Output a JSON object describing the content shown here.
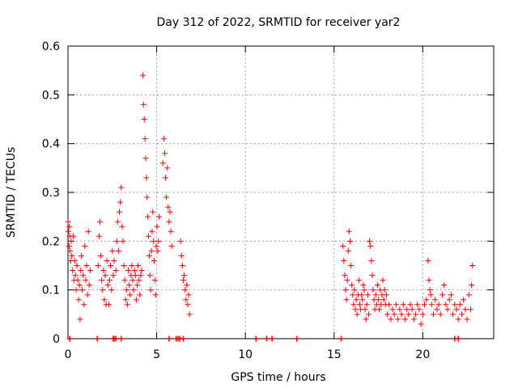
{
  "chart_data": {
    "type": "scatter",
    "title": "Day 312 of 2022, SRMTID for receiver yar2",
    "xlabel": "GPS time / hours",
    "ylabel": "SRMTID / TECUs",
    "xlim": [
      0,
      24
    ],
    "ylim": [
      0,
      0.6
    ],
    "x_ticks": [
      0,
      5,
      10,
      15,
      20
    ],
    "x_tick_labels": [
      "0",
      "5",
      "10",
      "15",
      "20"
    ],
    "y_ticks": [
      0,
      0.1,
      0.2,
      0.3,
      0.4,
      0.5,
      0.6
    ],
    "y_tick_labels": [
      "0",
      "0.1",
      "0.2",
      "0.3",
      "0.4",
      "0.5",
      "0.6"
    ],
    "grid": true,
    "marker": "plus",
    "color": "#ff0000",
    "series": [
      {
        "name": "SRMTID",
        "points": [
          [
            0.0,
            0.24
          ],
          [
            0.03,
            0.22
          ],
          [
            0.06,
            0.19
          ],
          [
            0.08,
            0.23
          ],
          [
            0.1,
            0.21
          ],
          [
            0.12,
            0.18
          ],
          [
            0.15,
            0.16
          ],
          [
            0.18,
            0.2
          ],
          [
            0.22,
            0.17
          ],
          [
            0.26,
            0.14
          ],
          [
            0.3,
            0.21
          ],
          [
            0.34,
            0.12
          ],
          [
            0.38,
            0.16
          ],
          [
            0.42,
            0.13
          ],
          [
            0.46,
            0.1
          ],
          [
            0.5,
            0.15
          ],
          [
            0.55,
            0.12
          ],
          [
            0.6,
            0.08
          ],
          [
            0.64,
            0.11
          ],
          [
            0.68,
            0.04
          ],
          [
            0.72,
            0.14
          ],
          [
            0.76,
            0.17
          ],
          [
            0.8,
            0.1
          ],
          [
            0.85,
            0.13
          ],
          [
            0.9,
            0.07
          ],
          [
            0.95,
            0.19
          ],
          [
            1.0,
            0.12
          ],
          [
            1.05,
            0.15
          ],
          [
            1.1,
            0.09
          ],
          [
            1.15,
            0.22
          ],
          [
            1.2,
            0.11
          ],
          [
            1.25,
            0.14
          ],
          [
            1.7,
            0.15
          ],
          [
            1.75,
            0.21
          ],
          [
            1.8,
            0.24
          ],
          [
            1.85,
            0.17
          ],
          [
            1.9,
            0.12
          ],
          [
            1.95,
            0.1
          ],
          [
            2.0,
            0.14
          ],
          [
            2.05,
            0.08
          ],
          [
            2.1,
            0.13
          ],
          [
            2.15,
            0.07
          ],
          [
            2.2,
            0.16
          ],
          [
            2.25,
            0.11
          ],
          [
            2.3,
            0.07
          ],
          [
            2.35,
            0.12
          ],
          [
            2.4,
            0.15
          ],
          [
            2.45,
            0.1
          ],
          [
            2.5,
            0.18
          ],
          [
            2.55,
            0.13
          ],
          [
            2.6,
            0.16
          ],
          [
            2.7,
            0.14
          ],
          [
            2.75,
            0.2
          ],
          [
            2.8,
            0.24
          ],
          [
            2.85,
            0.18
          ],
          [
            2.9,
            0.26
          ],
          [
            2.95,
            0.28
          ],
          [
            3.0,
            0.31
          ],
          [
            3.05,
            0.23
          ],
          [
            3.1,
            0.2
          ],
          [
            3.15,
            0.15
          ],
          [
            3.2,
            0.12
          ],
          [
            3.25,
            0.08
          ],
          [
            3.3,
            0.1
          ],
          [
            3.35,
            0.07
          ],
          [
            3.4,
            0.14
          ],
          [
            3.45,
            0.11
          ],
          [
            3.5,
            0.09
          ],
          [
            3.55,
            0.13
          ],
          [
            3.6,
            0.15
          ],
          [
            3.65,
            0.12
          ],
          [
            3.7,
            0.1
          ],
          [
            3.75,
            0.14
          ],
          [
            3.8,
            0.13
          ],
          [
            3.85,
            0.08
          ],
          [
            3.9,
            0.11
          ],
          [
            3.95,
            0.15
          ],
          [
            4.0,
            0.12
          ],
          [
            4.05,
            0.09
          ],
          [
            4.1,
            0.13
          ],
          [
            4.15,
            0.14
          ],
          [
            4.22,
            0.54
          ],
          [
            4.26,
            0.48
          ],
          [
            4.3,
            0.45
          ],
          [
            4.34,
            0.41
          ],
          [
            4.38,
            0.37
          ],
          [
            4.42,
            0.33
          ],
          [
            4.46,
            0.29
          ],
          [
            4.5,
            0.25
          ],
          [
            4.54,
            0.21
          ],
          [
            4.58,
            0.17
          ],
          [
            4.62,
            0.13
          ],
          [
            4.66,
            0.1
          ],
          [
            4.7,
            0.18
          ],
          [
            4.74,
            0.22
          ],
          [
            4.78,
            0.26
          ],
          [
            4.82,
            0.2
          ],
          [
            4.86,
            0.16
          ],
          [
            4.9,
            0.12
          ],
          [
            4.94,
            0.09
          ],
          [
            4.98,
            0.19
          ],
          [
            5.02,
            0.23
          ],
          [
            5.06,
            0.18
          ],
          [
            5.1,
            0.2
          ],
          [
            5.14,
            0.25
          ],
          [
            5.35,
            0.36
          ],
          [
            5.4,
            0.41
          ],
          [
            5.45,
            0.38
          ],
          [
            5.5,
            0.33
          ],
          [
            5.55,
            0.29
          ],
          [
            5.6,
            0.35
          ],
          [
            5.65,
            0.27
          ],
          [
            5.7,
            0.24
          ],
          [
            5.75,
            0.26
          ],
          [
            5.8,
            0.22
          ],
          [
            5.85,
            0.19
          ],
          [
            6.35,
            0.2
          ],
          [
            6.4,
            0.17
          ],
          [
            6.45,
            0.15
          ],
          [
            6.5,
            0.12
          ],
          [
            6.55,
            0.13
          ],
          [
            6.6,
            0.1
          ],
          [
            6.65,
            0.08
          ],
          [
            6.7,
            0.11
          ],
          [
            6.75,
            0.07
          ],
          [
            6.8,
            0.09
          ],
          [
            6.85,
            0.05
          ],
          [
            15.5,
            0.19
          ],
          [
            15.55,
            0.16
          ],
          [
            15.6,
            0.13
          ],
          [
            15.65,
            0.1
          ],
          [
            15.7,
            0.08
          ],
          [
            15.75,
            0.12
          ],
          [
            15.8,
            0.18
          ],
          [
            15.85,
            0.22
          ],
          [
            15.9,
            0.2
          ],
          [
            15.95,
            0.15
          ],
          [
            16.0,
            0.11
          ],
          [
            16.05,
            0.09
          ],
          [
            16.1,
            0.07
          ],
          [
            16.15,
            0.1
          ],
          [
            16.2,
            0.06
          ],
          [
            16.25,
            0.08
          ],
          [
            16.3,
            0.05
          ],
          [
            16.35,
            0.09
          ],
          [
            16.4,
            0.12
          ],
          [
            16.45,
            0.07
          ],
          [
            16.5,
            0.06
          ],
          [
            16.55,
            0.09
          ],
          [
            16.6,
            0.08
          ],
          [
            16.65,
            0.11
          ],
          [
            16.7,
            0.1
          ],
          [
            16.75,
            0.06
          ],
          [
            16.8,
            0.04
          ],
          [
            16.85,
            0.07
          ],
          [
            16.9,
            0.09
          ],
          [
            16.95,
            0.05
          ],
          [
            17.0,
            0.2
          ],
          [
            17.05,
            0.19
          ],
          [
            17.1,
            0.16
          ],
          [
            17.15,
            0.13
          ],
          [
            17.2,
            0.1
          ],
          [
            17.25,
            0.08
          ],
          [
            17.3,
            0.06
          ],
          [
            17.35,
            0.09
          ],
          [
            17.4,
            0.07
          ],
          [
            17.45,
            0.11
          ],
          [
            17.5,
            0.08
          ],
          [
            17.55,
            0.06
          ],
          [
            17.6,
            0.1
          ],
          [
            17.65,
            0.07
          ],
          [
            17.7,
            0.09
          ],
          [
            17.75,
            0.12
          ],
          [
            17.8,
            0.08
          ],
          [
            17.85,
            0.1
          ],
          [
            17.9,
            0.07
          ],
          [
            17.95,
            0.09
          ],
          [
            18.0,
            0.05
          ],
          [
            18.1,
            0.07
          ],
          [
            18.2,
            0.04
          ],
          [
            18.3,
            0.06
          ],
          [
            18.4,
            0.05
          ],
          [
            18.5,
            0.07
          ],
          [
            18.6,
            0.04
          ],
          [
            18.7,
            0.06
          ],
          [
            18.8,
            0.05
          ],
          [
            18.9,
            0.07
          ],
          [
            19.0,
            0.04
          ],
          [
            19.1,
            0.06
          ],
          [
            19.2,
            0.05
          ],
          [
            19.3,
            0.07
          ],
          [
            19.4,
            0.06
          ],
          [
            19.5,
            0.04
          ],
          [
            19.6,
            0.05
          ],
          [
            19.7,
            0.07
          ],
          [
            19.8,
            0.06
          ],
          [
            19.9,
            0.03
          ],
          [
            20.0,
            0.05
          ],
          [
            20.1,
            0.07
          ],
          [
            20.2,
            0.08
          ],
          [
            20.3,
            0.16
          ],
          [
            20.35,
            0.12
          ],
          [
            20.4,
            0.1
          ],
          [
            20.45,
            0.09
          ],
          [
            20.5,
            0.07
          ],
          [
            20.6,
            0.05
          ],
          [
            20.7,
            0.08
          ],
          [
            20.8,
            0.06
          ],
          [
            20.9,
            0.07
          ],
          [
            21.0,
            0.05
          ],
          [
            21.1,
            0.09
          ],
          [
            21.2,
            0.11
          ],
          [
            21.3,
            0.07
          ],
          [
            21.4,
            0.06
          ],
          [
            21.5,
            0.08
          ],
          [
            21.6,
            0.09
          ],
          [
            21.7,
            0.05
          ],
          [
            21.8,
            0.07
          ],
          [
            21.9,
            0.06
          ],
          [
            22.0,
            0.04
          ],
          [
            22.1,
            0.07
          ],
          [
            22.2,
            0.05
          ],
          [
            22.3,
            0.08
          ],
          [
            22.4,
            0.06
          ],
          [
            22.5,
            0.04
          ],
          [
            22.6,
            0.09
          ],
          [
            22.7,
            0.06
          ],
          [
            22.75,
            0.11
          ],
          [
            22.8,
            0.15
          ]
        ]
      }
    ],
    "baseline_markers_x": [
      0.1,
      1.65,
      2.55,
      2.6,
      2.7,
      3.0,
      5.7,
      6.1,
      6.2,
      6.3,
      6.5,
      10.6,
      11.2,
      11.5,
      12.9,
      15.4,
      21.8,
      22.0
    ]
  }
}
